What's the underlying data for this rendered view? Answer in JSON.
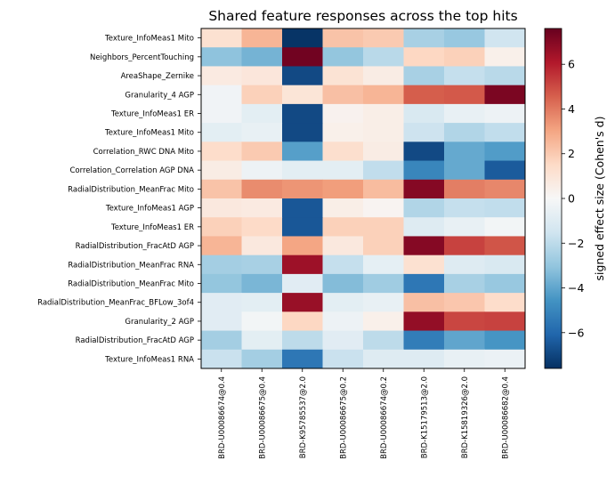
{
  "chart_data": {
    "type": "heatmap",
    "title": "Shared feature responses across the top hits",
    "xlabel": "",
    "ylabel": "",
    "colorbar_label": "signed effect size (Cohen's d)",
    "colormap": "RdBu_r",
    "vmin": -7.6,
    "vmax": 7.6,
    "colorbar_ticks": [
      "−6",
      "−4",
      "−2",
      "0",
      "2",
      "4",
      "6"
    ],
    "colorbar_tick_values": [
      -6,
      -4,
      -2,
      0,
      2,
      4,
      6
    ],
    "columns": [
      "BRD-U00086674@0.4",
      "BRD-U00086675@0.4",
      "BRD-K95785537@2.0",
      "BRD-U00086675@0.2",
      "BRD-U00086674@0.2",
      "BRD-K15179513@2.0",
      "BRD-K15819326@2.0",
      "BRD-U00086682@0.4"
    ],
    "rows": [
      "Texture_InfoMeas1 Mito",
      "Neighbors_PercentTouching",
      "AreaShape_Zernike",
      "Granularity_4 AGP",
      "Texture_InfoMeas1 ER",
      "Texture_InfoMeas1 Mito",
      "Correlation_RWC DNA Mito",
      "Correlation_Correlation AGP DNA",
      "RadialDistribution_MeanFrac Mito",
      "Texture_InfoMeas1 AGP",
      "Texture_InfoMeas1 ER",
      "RadialDistribution_FracAtD AGP",
      "RadialDistribution_MeanFrac RNA",
      "RadialDistribution_MeanFrac Mito",
      "RadialDistribution_MeanFrac_BFLow_3of4",
      "Granularity_2 AGP",
      "RadialDistribution_FracAtD AGP",
      "Texture_InfoMeas1 RNA"
    ],
    "values": [
      [
        1.2,
        2.6,
        -7.5,
        2.2,
        2.0,
        -2.5,
        -2.9,
        -1.5
      ],
      [
        -3.1,
        -3.6,
        7.4,
        -3.0,
        -2.1,
        1.6,
        1.8,
        0.4
      ],
      [
        0.7,
        0.9,
        -6.9,
        1.1,
        0.6,
        -2.5,
        -1.8,
        -2.1
      ],
      [
        -0.3,
        1.8,
        1.0,
        2.3,
        2.6,
        4.6,
        4.7,
        7.2
      ],
      [
        -0.3,
        -0.8,
        -6.9,
        0.3,
        0.5,
        -1.2,
        -0.6,
        -0.4
      ],
      [
        -0.8,
        -0.6,
        -6.9,
        0.4,
        0.5,
        -1.6,
        -2.3,
        -1.9
      ],
      [
        1.4,
        2.0,
        -4.2,
        1.3,
        0.6,
        -6.9,
        -3.9,
        -4.3
      ],
      [
        0.6,
        -0.4,
        -0.8,
        -0.8,
        -1.9,
        -5.0,
        -3.9,
        -6.4
      ],
      [
        2.2,
        3.6,
        3.4,
        3.2,
        2.4,
        7.0,
        3.9,
        3.7
      ],
      [
        0.8,
        0.7,
        -6.5,
        0.5,
        0.2,
        -2.3,
        -1.8,
        -1.9
      ],
      [
        1.8,
        1.5,
        -6.5,
        1.8,
        1.8,
        -1.0,
        -0.6,
        -0.2
      ],
      [
        2.6,
        0.8,
        3.0,
        0.8,
        1.8,
        7.0,
        5.2,
        4.8
      ],
      [
        -2.6,
        -2.5,
        6.5,
        -1.8,
        -0.7,
        1.2,
        -1.0,
        -1.2
      ],
      [
        -3.0,
        -3.5,
        -0.9,
        -3.3,
        -2.7,
        -5.5,
        -2.5,
        -2.9
      ],
      [
        -0.9,
        -0.8,
        6.6,
        -0.8,
        -0.6,
        2.3,
        2.1,
        1.4
      ],
      [
        -0.9,
        -0.2,
        1.6,
        -0.4,
        0.4,
        6.7,
        5.1,
        5.2
      ],
      [
        -2.6,
        -0.8,
        -2.0,
        -0.9,
        -2.0,
        -5.3,
        -4.0,
        -4.5
      ],
      [
        -1.7,
        -2.6,
        -5.5,
        -1.7,
        -1.0,
        -1.0,
        -0.6,
        -0.5
      ]
    ]
  }
}
